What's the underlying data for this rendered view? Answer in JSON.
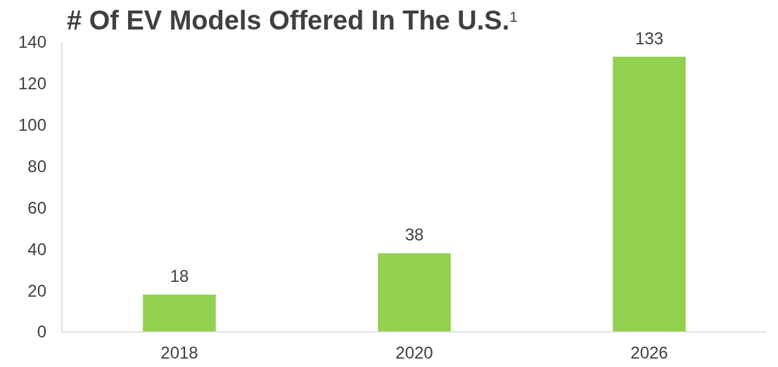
{
  "chart_data": {
    "type": "bar",
    "title": "# Of EV Models Offered In The U.S.$^{1}$",
    "categories": [
      "2018",
      "2020",
      "2026"
    ],
    "values": [
      18,
      38,
      133
    ],
    "color": "#92d050",
    "ylim": [
      0,
      140
    ],
    "yticks": [
      0,
      20,
      40,
      60,
      80,
      100,
      120,
      140
    ],
    "data_labels": true,
    "grid": false
  }
}
